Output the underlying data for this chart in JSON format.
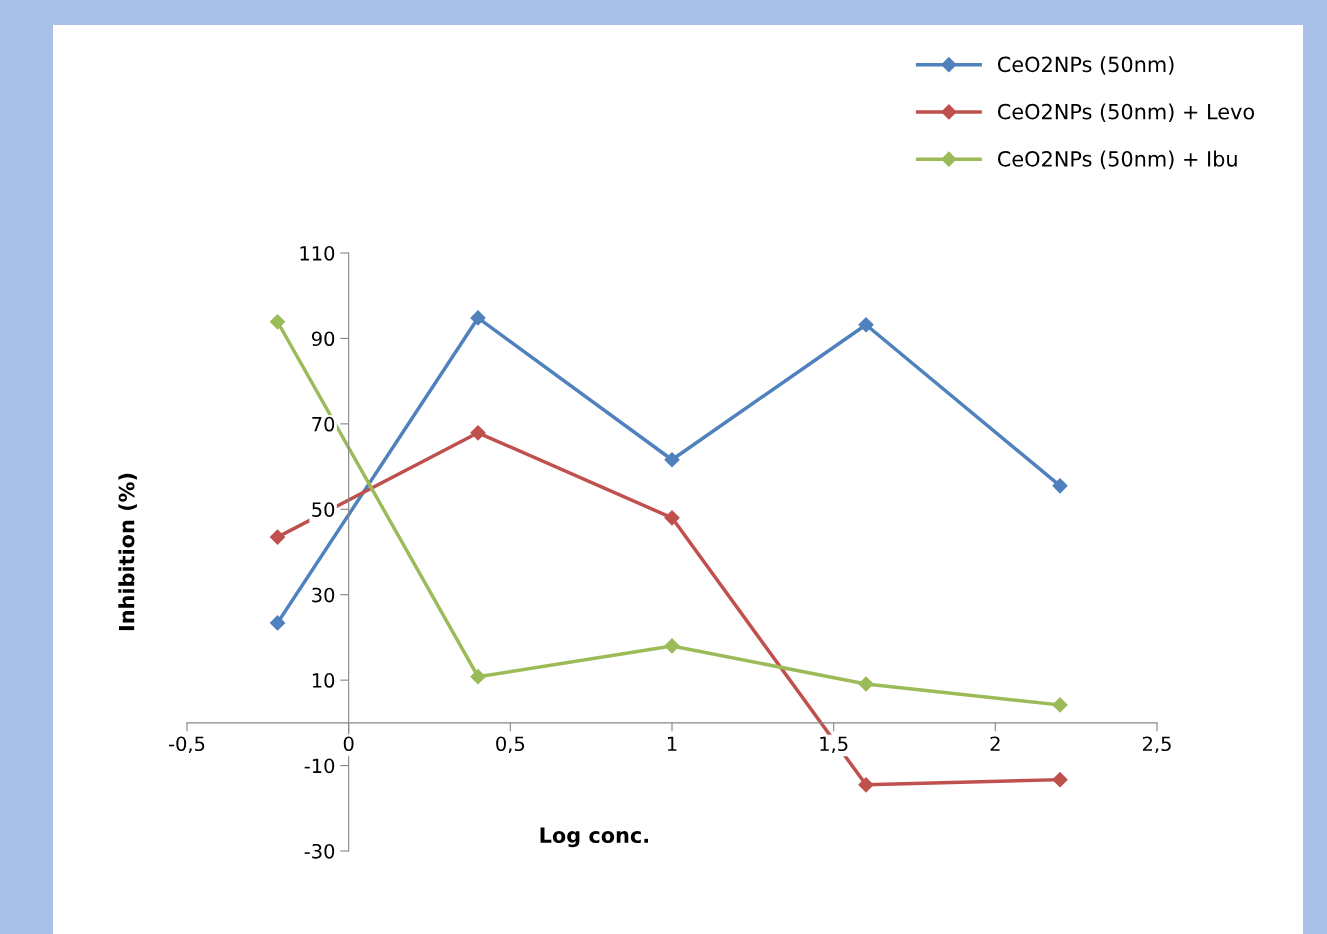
{
  "chart_data": {
    "type": "line",
    "xlabel": "Log conc.",
    "ylabel": "Inhibition (%)",
    "x": [
      -0.22,
      0.4,
      1,
      1.6,
      2.2
    ],
    "series": [
      {
        "name": "CeO2NPs (50nm)",
        "color": "#4f81bd",
        "values": [
          23.4,
          94.8,
          61.6,
          93.2,
          55.5
        ]
      },
      {
        "name": "CeO2NPs (50nm) + Levo",
        "color": "#c0504d",
        "values": [
          43.5,
          67.9,
          48.0,
          -14.5,
          -13.3
        ]
      },
      {
        "name": "CeO2NPs (50nm) + Ibu",
        "color": "#9bbb59",
        "values": [
          93.9,
          10.8,
          18.0,
          9.1,
          4.2
        ]
      }
    ],
    "xlim": [
      -0.5,
      2.5
    ],
    "xticks": [
      {
        "value": -0.5,
        "label": "-0,5"
      },
      0,
      {
        "value": 0.5,
        "label": "0,5"
      },
      1,
      {
        "value": 1.5,
        "label": "1,5"
      },
      2,
      {
        "value": 2.5,
        "label": "2,5"
      }
    ],
    "ylim": [
      -30,
      110
    ],
    "yticks": [
      -30,
      -10,
      10,
      30,
      50,
      70,
      90,
      110
    ],
    "marker": "diamond",
    "line_style": "solid",
    "grid": false,
    "legend": "top right"
  }
}
